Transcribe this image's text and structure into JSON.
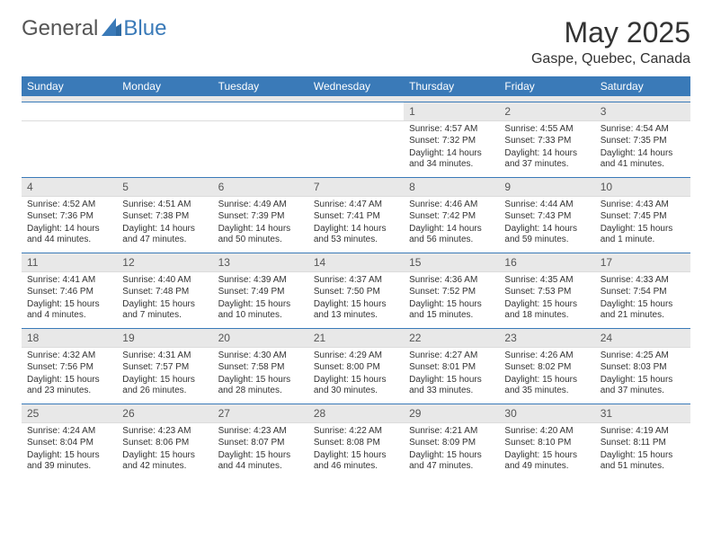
{
  "brand": {
    "part1": "General",
    "part2": "Blue"
  },
  "title": "May 2025",
  "location": "Gaspe, Quebec, Canada",
  "colors": {
    "accent": "#3a7ab8",
    "header_bg": "#3a7ab8",
    "header_text": "#ffffff",
    "daynum_bg": "#e8e8e8",
    "text": "#333333",
    "background": "#ffffff",
    "divider": "#3a7ab8"
  },
  "typography": {
    "title_fontsize": 32,
    "location_fontsize": 16,
    "dayheader_fontsize": 12,
    "daynum_fontsize": 12,
    "body_fontsize": 10
  },
  "day_headers": [
    "Sunday",
    "Monday",
    "Tuesday",
    "Wednesday",
    "Thursday",
    "Friday",
    "Saturday"
  ],
  "weeks": [
    [
      {
        "n": "",
        "sunrise": "",
        "sunset": "",
        "daylight": ""
      },
      {
        "n": "",
        "sunrise": "",
        "sunset": "",
        "daylight": ""
      },
      {
        "n": "",
        "sunrise": "",
        "sunset": "",
        "daylight": ""
      },
      {
        "n": "",
        "sunrise": "",
        "sunset": "",
        "daylight": ""
      },
      {
        "n": "1",
        "sunrise": "Sunrise: 4:57 AM",
        "sunset": "Sunset: 7:32 PM",
        "daylight": "Daylight: 14 hours and 34 minutes."
      },
      {
        "n": "2",
        "sunrise": "Sunrise: 4:55 AM",
        "sunset": "Sunset: 7:33 PM",
        "daylight": "Daylight: 14 hours and 37 minutes."
      },
      {
        "n": "3",
        "sunrise": "Sunrise: 4:54 AM",
        "sunset": "Sunset: 7:35 PM",
        "daylight": "Daylight: 14 hours and 41 minutes."
      }
    ],
    [
      {
        "n": "4",
        "sunrise": "Sunrise: 4:52 AM",
        "sunset": "Sunset: 7:36 PM",
        "daylight": "Daylight: 14 hours and 44 minutes."
      },
      {
        "n": "5",
        "sunrise": "Sunrise: 4:51 AM",
        "sunset": "Sunset: 7:38 PM",
        "daylight": "Daylight: 14 hours and 47 minutes."
      },
      {
        "n": "6",
        "sunrise": "Sunrise: 4:49 AM",
        "sunset": "Sunset: 7:39 PM",
        "daylight": "Daylight: 14 hours and 50 minutes."
      },
      {
        "n": "7",
        "sunrise": "Sunrise: 4:47 AM",
        "sunset": "Sunset: 7:41 PM",
        "daylight": "Daylight: 14 hours and 53 minutes."
      },
      {
        "n": "8",
        "sunrise": "Sunrise: 4:46 AM",
        "sunset": "Sunset: 7:42 PM",
        "daylight": "Daylight: 14 hours and 56 minutes."
      },
      {
        "n": "9",
        "sunrise": "Sunrise: 4:44 AM",
        "sunset": "Sunset: 7:43 PM",
        "daylight": "Daylight: 14 hours and 59 minutes."
      },
      {
        "n": "10",
        "sunrise": "Sunrise: 4:43 AM",
        "sunset": "Sunset: 7:45 PM",
        "daylight": "Daylight: 15 hours and 1 minute."
      }
    ],
    [
      {
        "n": "11",
        "sunrise": "Sunrise: 4:41 AM",
        "sunset": "Sunset: 7:46 PM",
        "daylight": "Daylight: 15 hours and 4 minutes."
      },
      {
        "n": "12",
        "sunrise": "Sunrise: 4:40 AM",
        "sunset": "Sunset: 7:48 PM",
        "daylight": "Daylight: 15 hours and 7 minutes."
      },
      {
        "n": "13",
        "sunrise": "Sunrise: 4:39 AM",
        "sunset": "Sunset: 7:49 PM",
        "daylight": "Daylight: 15 hours and 10 minutes."
      },
      {
        "n": "14",
        "sunrise": "Sunrise: 4:37 AM",
        "sunset": "Sunset: 7:50 PM",
        "daylight": "Daylight: 15 hours and 13 minutes."
      },
      {
        "n": "15",
        "sunrise": "Sunrise: 4:36 AM",
        "sunset": "Sunset: 7:52 PM",
        "daylight": "Daylight: 15 hours and 15 minutes."
      },
      {
        "n": "16",
        "sunrise": "Sunrise: 4:35 AM",
        "sunset": "Sunset: 7:53 PM",
        "daylight": "Daylight: 15 hours and 18 minutes."
      },
      {
        "n": "17",
        "sunrise": "Sunrise: 4:33 AM",
        "sunset": "Sunset: 7:54 PM",
        "daylight": "Daylight: 15 hours and 21 minutes."
      }
    ],
    [
      {
        "n": "18",
        "sunrise": "Sunrise: 4:32 AM",
        "sunset": "Sunset: 7:56 PM",
        "daylight": "Daylight: 15 hours and 23 minutes."
      },
      {
        "n": "19",
        "sunrise": "Sunrise: 4:31 AM",
        "sunset": "Sunset: 7:57 PM",
        "daylight": "Daylight: 15 hours and 26 minutes."
      },
      {
        "n": "20",
        "sunrise": "Sunrise: 4:30 AM",
        "sunset": "Sunset: 7:58 PM",
        "daylight": "Daylight: 15 hours and 28 minutes."
      },
      {
        "n": "21",
        "sunrise": "Sunrise: 4:29 AM",
        "sunset": "Sunset: 8:00 PM",
        "daylight": "Daylight: 15 hours and 30 minutes."
      },
      {
        "n": "22",
        "sunrise": "Sunrise: 4:27 AM",
        "sunset": "Sunset: 8:01 PM",
        "daylight": "Daylight: 15 hours and 33 minutes."
      },
      {
        "n": "23",
        "sunrise": "Sunrise: 4:26 AM",
        "sunset": "Sunset: 8:02 PM",
        "daylight": "Daylight: 15 hours and 35 minutes."
      },
      {
        "n": "24",
        "sunrise": "Sunrise: 4:25 AM",
        "sunset": "Sunset: 8:03 PM",
        "daylight": "Daylight: 15 hours and 37 minutes."
      }
    ],
    [
      {
        "n": "25",
        "sunrise": "Sunrise: 4:24 AM",
        "sunset": "Sunset: 8:04 PM",
        "daylight": "Daylight: 15 hours and 39 minutes."
      },
      {
        "n": "26",
        "sunrise": "Sunrise: 4:23 AM",
        "sunset": "Sunset: 8:06 PM",
        "daylight": "Daylight: 15 hours and 42 minutes."
      },
      {
        "n": "27",
        "sunrise": "Sunrise: 4:23 AM",
        "sunset": "Sunset: 8:07 PM",
        "daylight": "Daylight: 15 hours and 44 minutes."
      },
      {
        "n": "28",
        "sunrise": "Sunrise: 4:22 AM",
        "sunset": "Sunset: 8:08 PM",
        "daylight": "Daylight: 15 hours and 46 minutes."
      },
      {
        "n": "29",
        "sunrise": "Sunrise: 4:21 AM",
        "sunset": "Sunset: 8:09 PM",
        "daylight": "Daylight: 15 hours and 47 minutes."
      },
      {
        "n": "30",
        "sunrise": "Sunrise: 4:20 AM",
        "sunset": "Sunset: 8:10 PM",
        "daylight": "Daylight: 15 hours and 49 minutes."
      },
      {
        "n": "31",
        "sunrise": "Sunrise: 4:19 AM",
        "sunset": "Sunset: 8:11 PM",
        "daylight": "Daylight: 15 hours and 51 minutes."
      }
    ]
  ]
}
